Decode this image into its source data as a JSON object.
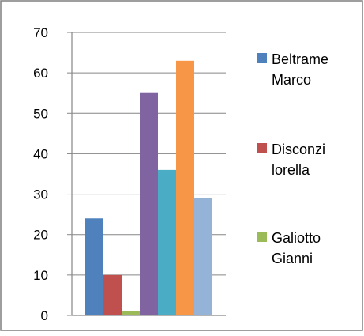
{
  "chart_data": {
    "type": "bar",
    "series": [
      {
        "name": "Beltrame Marco",
        "values": [
          24
        ],
        "color": "#4F81BD"
      },
      {
        "name": "Disconzi lorella",
        "values": [
          10
        ],
        "color": "#C0504D"
      },
      {
        "name": "Galiotto Gianni",
        "values": [
          1
        ],
        "color": "#9BBB59"
      },
      {
        "name": "",
        "values": [
          55
        ],
        "color": "#8064A2"
      },
      {
        "name": "",
        "values": [
          36
        ],
        "color": "#4BACC6"
      },
      {
        "name": "",
        "values": [
          63
        ],
        "color": "#F79646"
      },
      {
        "name": "",
        "values": [
          29
        ],
        "color": "#95B3D7"
      }
    ],
    "y_ticks": [
      "0",
      "10",
      "20",
      "30",
      "40",
      "50",
      "60",
      "70"
    ],
    "ylim": [
      0,
      70
    ],
    "grid": true,
    "legend": {
      "placement": "right",
      "entries": [
        {
          "lines": [
            "Beltrame",
            "Marco"
          ],
          "color": "#4F81BD"
        },
        {
          "lines": [
            "Disconzi",
            "lorella"
          ],
          "color": "#C0504D"
        },
        {
          "lines": [
            "Galiotto",
            "Gianni"
          ],
          "color": "#9BBB59"
        }
      ]
    }
  }
}
